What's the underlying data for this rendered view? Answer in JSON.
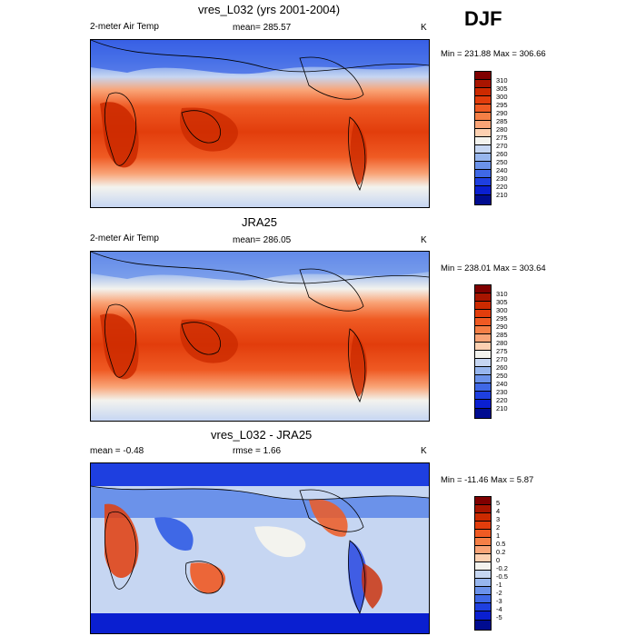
{
  "season": "DJF",
  "panels": [
    {
      "title": "vres_L032 (yrs 2001-2004)",
      "left_label": "2-meter Air Temp",
      "center_label": "mean= 285.57",
      "right_label": "K",
      "minmax": "Min = 231.88 Max = 306.66"
    },
    {
      "title": "JRA25",
      "left_label": "2-meter Air Temp",
      "center_label": "mean= 286.05",
      "right_label": "K",
      "minmax": "Min = 238.01 Max = 303.64"
    },
    {
      "title": "vres_L032 - JRA25",
      "left_label": "mean =  -0.48",
      "center_label": "rmse =   1.66",
      "right_label": "K",
      "minmax": "Min = -11.46 Max =   5.87"
    }
  ],
  "colorbars": {
    "temperature": {
      "labels": [
        "310",
        "305",
        "300",
        "295",
        "290",
        "285",
        "280",
        "275",
        "270",
        "260",
        "250",
        "240",
        "230",
        "220",
        "210"
      ],
      "colors": [
        "#800000",
        "#a81500",
        "#cc2a00",
        "#e23d0c",
        "#ef5a23",
        "#f57f46",
        "#f9a477",
        "#fcd0b1",
        "#f3f3ee",
        "#c6d6f2",
        "#97b6ee",
        "#6b92ea",
        "#3f68e6",
        "#1e3fe0",
        "#0a1fd0",
        "#000c90"
      ]
    },
    "difference": {
      "labels": [
        "5",
        "4",
        "3",
        "2",
        "1",
        "0.5",
        "0.2",
        "0",
        "-0.2",
        "-0.5",
        "-1",
        "-2",
        "-3",
        "-4",
        "-5"
      ],
      "colors": [
        "#800000",
        "#a81500",
        "#cc2a00",
        "#e23d0c",
        "#ef5a23",
        "#f57f46",
        "#f9a477",
        "#fcd0b1",
        "#f3f3ee",
        "#c6d6f2",
        "#97b6ee",
        "#6b92ea",
        "#3f68e6",
        "#1e3fe0",
        "#0a1fd0",
        "#000c90"
      ]
    }
  }
}
